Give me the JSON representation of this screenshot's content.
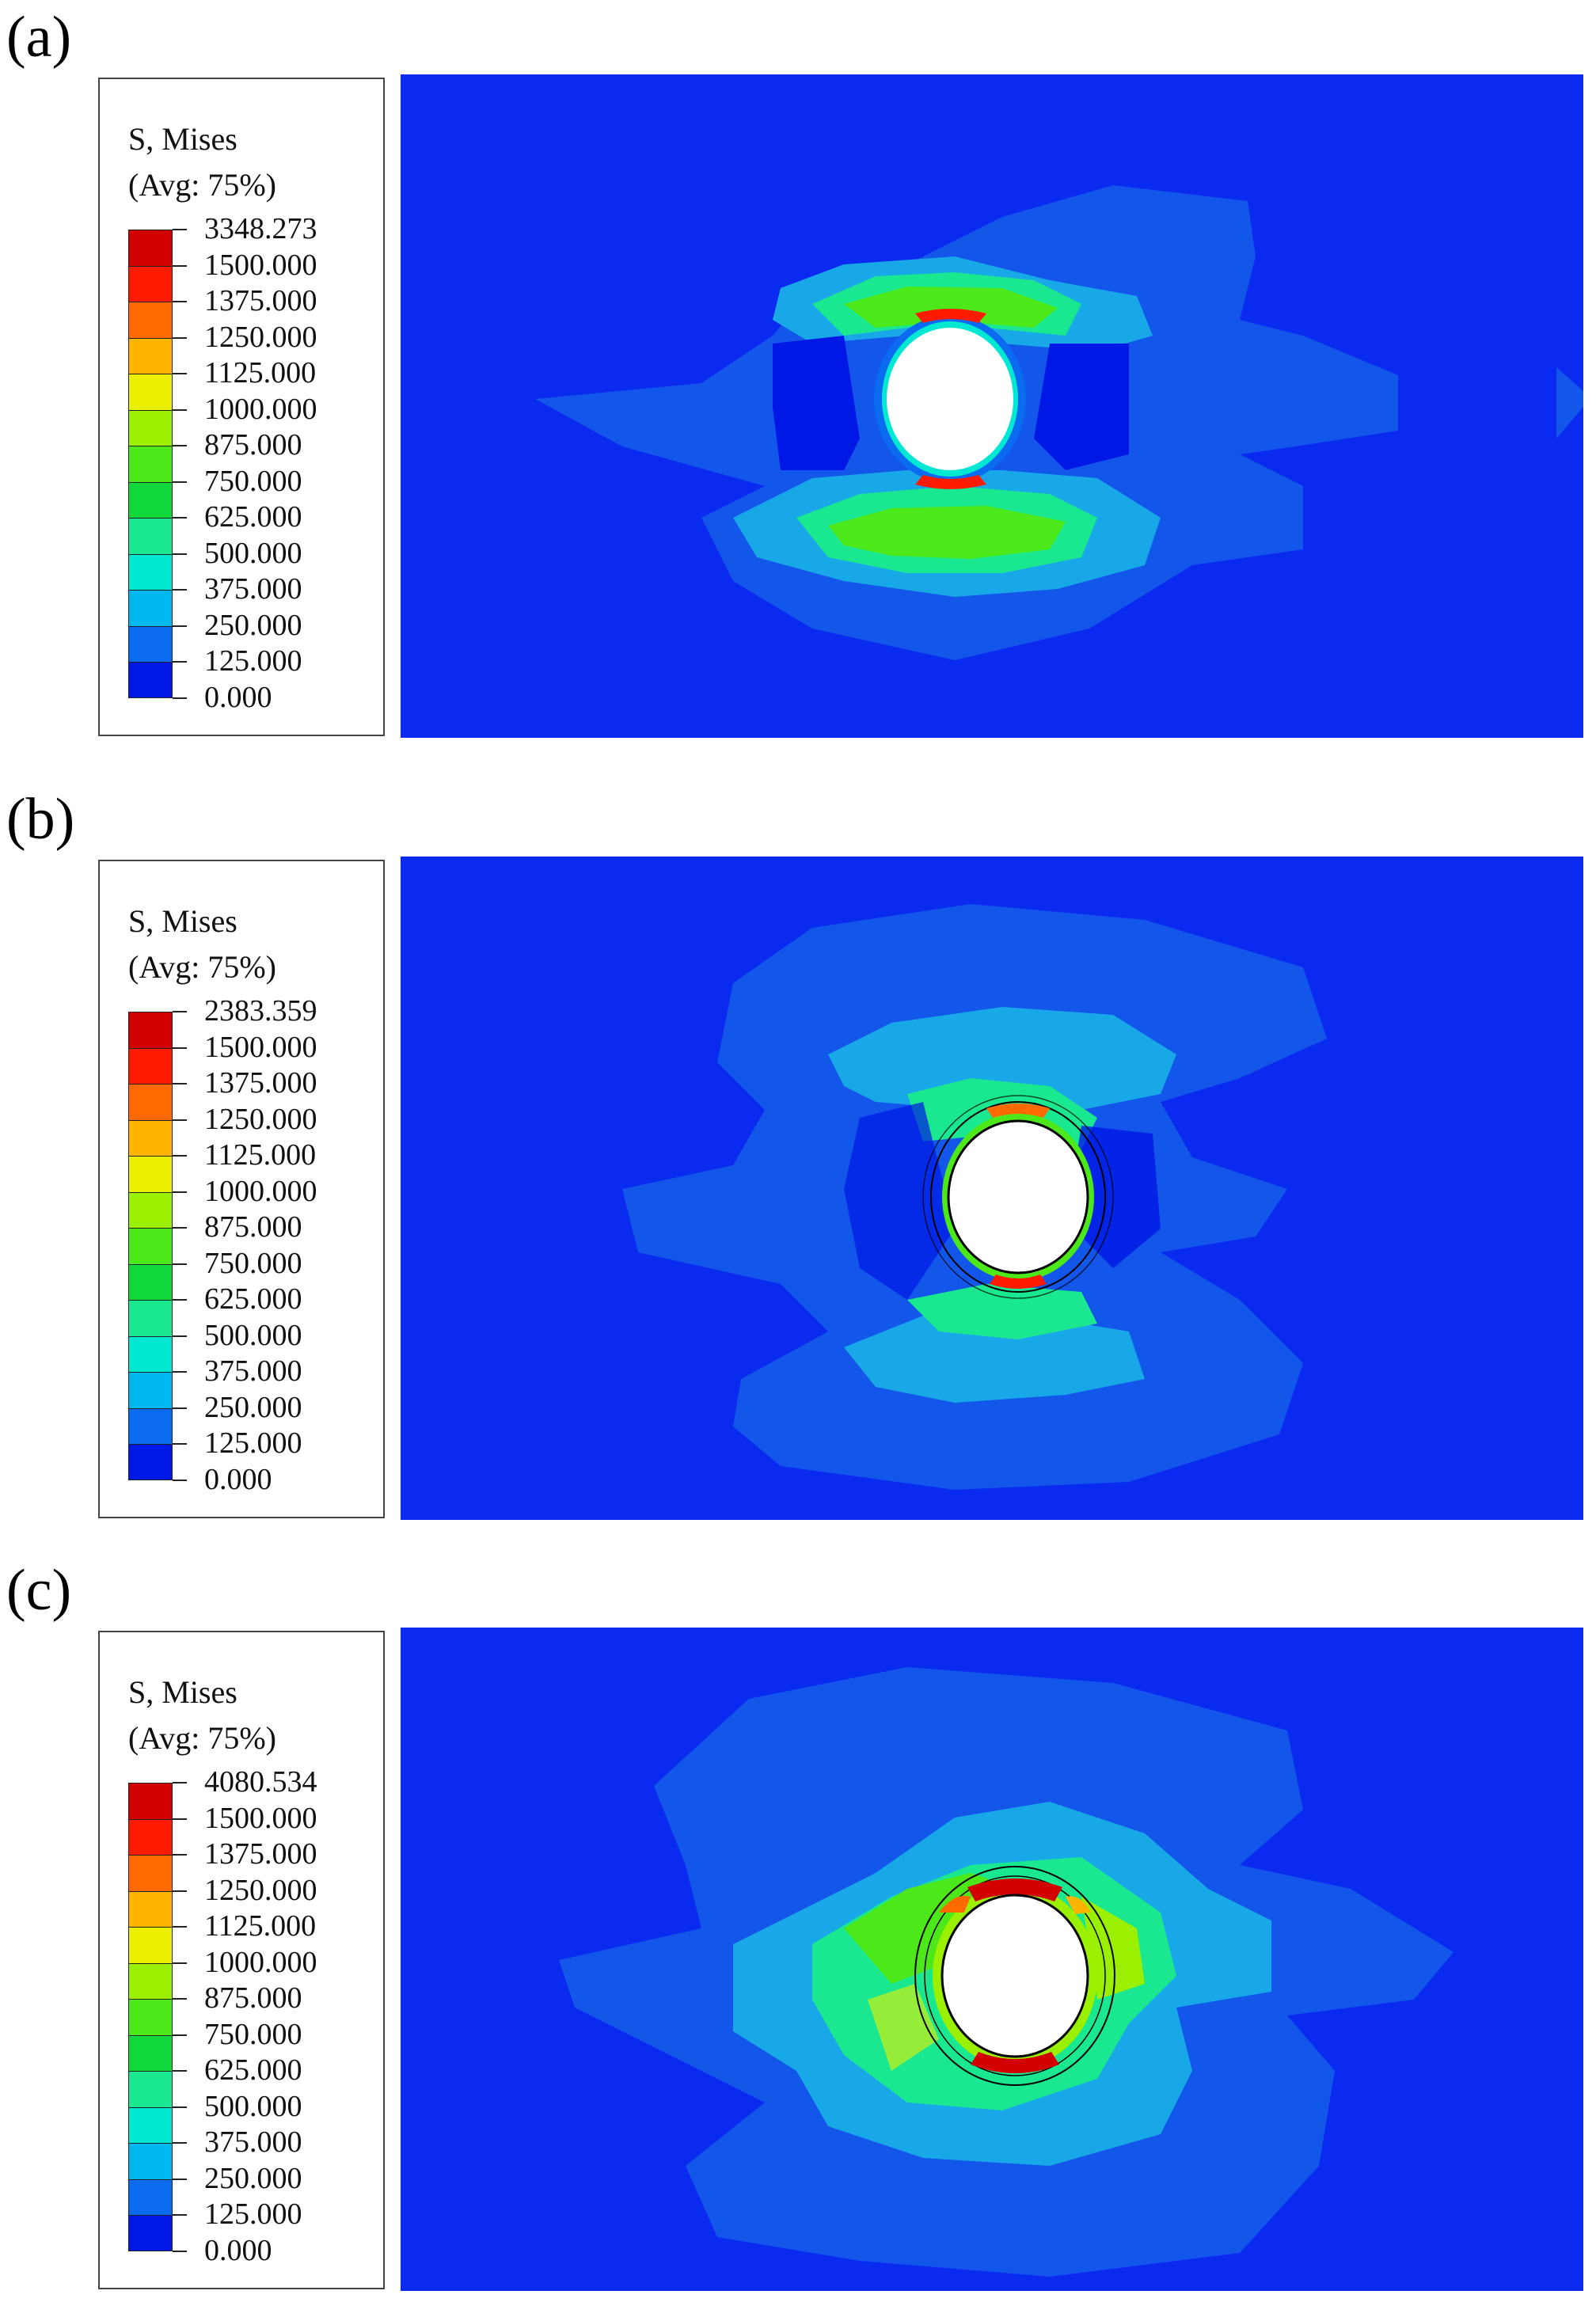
{
  "panels": [
    {
      "id": "a",
      "label": "(a)",
      "legend": {
        "title_line1": "S, Mises",
        "title_line2": "(Avg: 75%)",
        "values": [
          "3348.273",
          "1500.000",
          "1375.000",
          "1250.000",
          "1125.000",
          "1000.000",
          "875.000",
          "750.000",
          "625.000",
          "500.000",
          "375.000",
          "250.000",
          "125.000",
          "0.000"
        ]
      }
    },
    {
      "id": "b",
      "label": "(b)",
      "legend": {
        "title_line1": "S, Mises",
        "title_line2": "(Avg: 75%)",
        "values": [
          "2383.359",
          "1500.000",
          "1375.000",
          "1250.000",
          "1125.000",
          "1000.000",
          "875.000",
          "750.000",
          "625.000",
          "500.000",
          "375.000",
          "250.000",
          "125.000",
          "0.000"
        ]
      }
    },
    {
      "id": "c",
      "label": "(c)",
      "legend": {
        "title_line1": "S, Mises",
        "title_line2": "(Avg: 75%)",
        "values": [
          "4080.534",
          "1500.000",
          "1375.000",
          "1250.000",
          "1125.000",
          "1000.000",
          "875.000",
          "750.000",
          "625.000",
          "500.000",
          "375.000",
          "250.000",
          "125.000",
          "0.000"
        ]
      }
    }
  ],
  "colors": {
    "scale": [
      "#d20000",
      "#ff1a00",
      "#ff6a00",
      "#ffb400",
      "#eaf000",
      "#9af000",
      "#4ce81a",
      "#10d83a",
      "#1ae890",
      "#00e8d2",
      "#00b8f0",
      "#0a6af0",
      "#0018e6"
    ],
    "background_blue": "#0a2af0",
    "low_blue": "#1256ea",
    "mid_cyan": "#18a8e8",
    "hole": "#ffffff",
    "line": "#000000"
  }
}
